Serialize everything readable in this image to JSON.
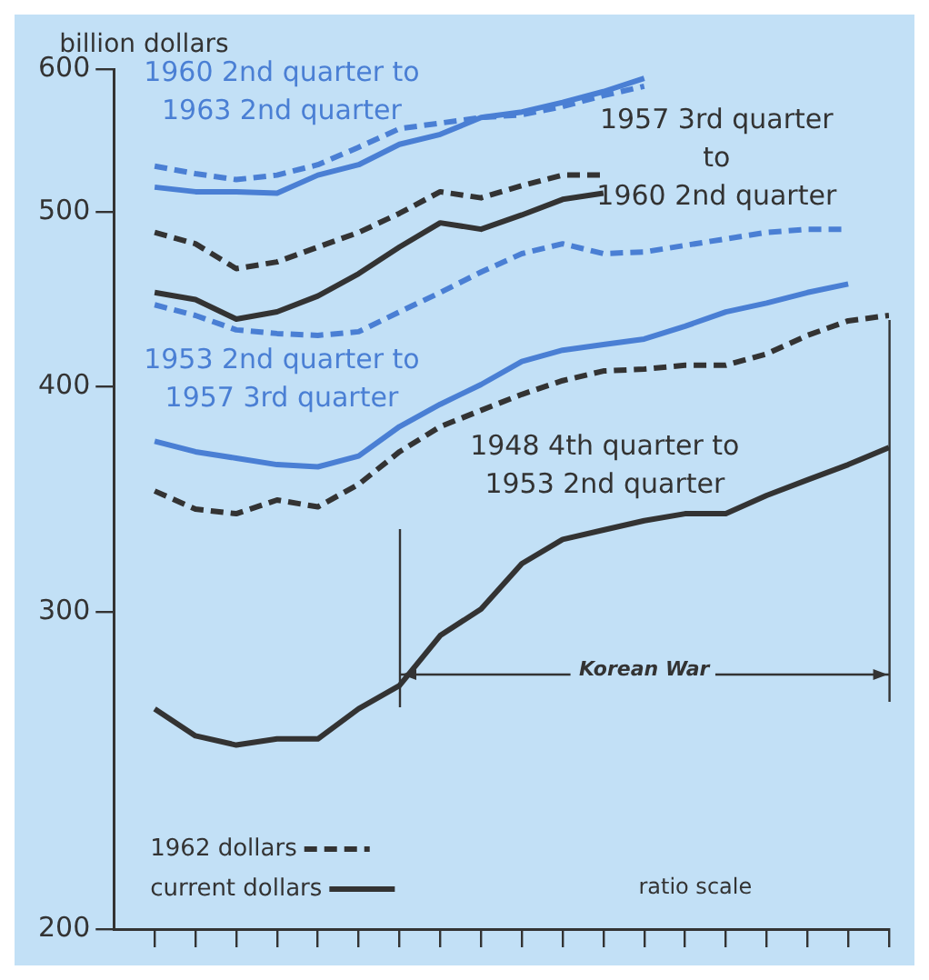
{
  "chart_data": {
    "type": "line",
    "ylabel": "billion dollars",
    "categories": [
      null,
      null,
      null,
      null,
      null,
      null,
      null,
      null,
      null,
      null,
      null,
      null,
      null,
      null,
      null,
      null,
      null,
      null,
      null
    ],
    "ylim": [
      200,
      600
    ],
    "yticks": [
      200,
      300,
      400,
      500,
      600
    ],
    "log": "y",
    "grid": false,
    "tick_labels": "y",
    "legend": "bottom left",
    "series": [
      {
        "name": "1962 dollars",
        "color": "#333333",
        "line_style": "dashed",
        "values": [
          350,
          342,
          340,
          346,
          343,
          353,
          368,
          380,
          388,
          396,
          403,
          408,
          409,
          411,
          411,
          417,
          427,
          435,
          438
        ]
      },
      {
        "name": "current dollars",
        "color": "#333333",
        "line_style": "solid",
        "values": [
          265,
          256,
          253,
          255,
          255,
          265,
          273,
          291,
          301,
          319,
          329,
          333,
          337,
          340,
          340,
          348,
          355,
          362,
          370
        ]
      },
      {
        "color": "#4a7fd4",
        "line_style": "dashed",
        "values": [
          444,
          438,
          430,
          428,
          427,
          429,
          440,
          451,
          463,
          474,
          480,
          474,
          475,
          479,
          483,
          487,
          489,
          489,
          null
        ]
      },
      {
        "color": "#4a7fd4",
        "line_style": "solid",
        "values": [
          373,
          368,
          365,
          362,
          361,
          366,
          380,
          391,
          401,
          413,
          419,
          422,
          425,
          432,
          440,
          445,
          451,
          456,
          null
        ]
      },
      {
        "color": "#333333",
        "line_style": "dashed",
        "values": [
          487,
          480,
          465,
          469,
          478,
          487,
          499,
          513,
          509,
          517,
          524,
          524,
          null,
          null,
          null,
          null,
          null,
          null,
          null
        ]
      },
      {
        "color": "#333333",
        "line_style": "solid",
        "values": [
          451,
          447,
          436,
          440,
          449,
          462,
          478,
          493,
          489,
          498,
          508,
          512,
          null,
          null,
          null,
          null,
          null,
          null,
          null
        ]
      },
      {
        "color": "#4a7fd4",
        "line_style": "dashed",
        "values": [
          530,
          525,
          521,
          524,
          531,
          543,
          556,
          560,
          564,
          566,
          572,
          580,
          587,
          null,
          null,
          null,
          null,
          null,
          null
        ]
      },
      {
        "color": "#4a7fd4",
        "line_style": "solid",
        "values": [
          516,
          513,
          513,
          512,
          524,
          531,
          545,
          552,
          564,
          568,
          575,
          583,
          593,
          null,
          null,
          null,
          null,
          null,
          null
        ]
      }
    ],
    "annotations": [
      "1960 2nd quarter to\n1963 2nd quarter",
      "1957 3rd quarter\nto\n1960 2nd quarter",
      "1953 2nd quarter to\n1957 3rd quarter",
      "1948 4th quarter to\n1953 2nd quarter",
      "Korean War",
      "ratio scale"
    ]
  }
}
